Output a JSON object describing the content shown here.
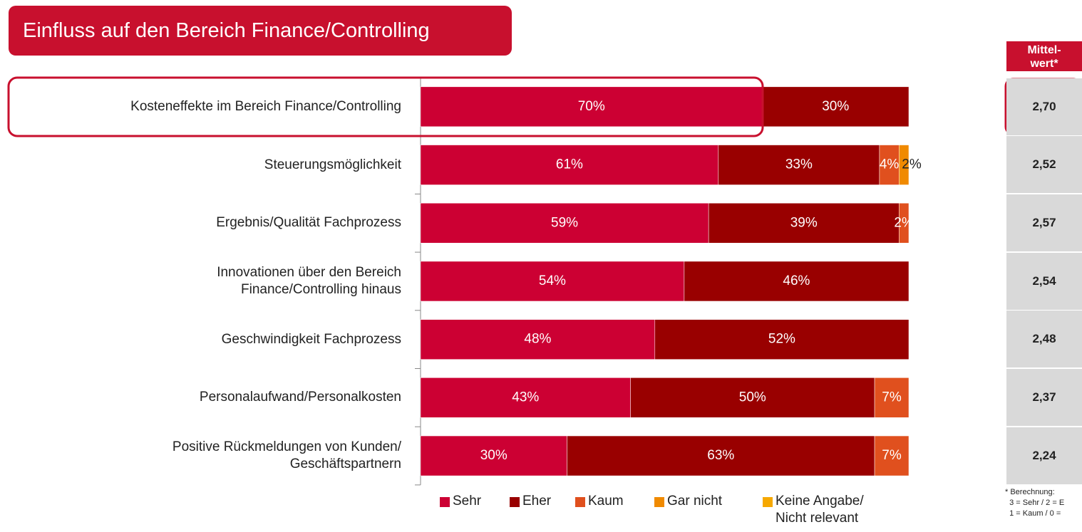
{
  "chart_data": {
    "type": "stacked_barh",
    "title": "Einfluss auf den Bereich Finance/Controlling",
    "categories": [
      "Kosteneffekte im Bereich Finance/Controlling",
      "Steuerungsmöglichkeit",
      "Ergebnis/Qualität Fachprozess",
      "Innovationen über den Bereich\nFinance/Controlling hinaus",
      "Geschwindigkeit Fachprozess",
      "Personalaufwand/Personalkosten",
      "Positive Rückmeldungen von Kunden/\nGeschäftspartnern"
    ],
    "xlim": [
      0,
      100
    ],
    "series": [
      {
        "name": "Sehr",
        "color": "#cc0033",
        "values": [
          70,
          61,
          59,
          54,
          48,
          43,
          30
        ],
        "value_labels": [
          "70%",
          "61%",
          "59%",
          "54%",
          "48%",
          "43%",
          "30%"
        ]
      },
      {
        "name": "Eher",
        "color": "#990000",
        "values": [
          30,
          33,
          39,
          46,
          52,
          50,
          63
        ],
        "value_labels": [
          "30%",
          "33%",
          "39%",
          "46%",
          "52%",
          "50%",
          "63%"
        ]
      },
      {
        "name": "Kaum",
        "color": "#e0501e",
        "values": [
          null,
          4,
          2,
          null,
          null,
          7,
          7
        ],
        "value_labels": [
          null,
          "4%",
          "2%",
          null,
          null,
          "7%",
          "7%"
        ]
      },
      {
        "name": "Gar nicht",
        "color": "#f08a00",
        "values": [
          null,
          2,
          null,
          null,
          null,
          null,
          null
        ],
        "value_labels": [
          null,
          "2%",
          null,
          null,
          null,
          null,
          null
        ]
      },
      {
        "name": "Keine Angabe/\nNicht relevant",
        "color": "#f6a800",
        "values": [
          null,
          null,
          null,
          null,
          null,
          null,
          null
        ]
      }
    ],
    "mean_column": {
      "header": "Mittel-\nwert*",
      "values": [
        "2,70",
        "2,52",
        "2,57",
        "2,54",
        "2,48",
        "2,37",
        "2,24"
      ]
    },
    "footnote": [
      "* Berechnung:",
      "  3 = Sehr / 2 = E",
      "  1 = Kaum / 0 ="
    ]
  }
}
